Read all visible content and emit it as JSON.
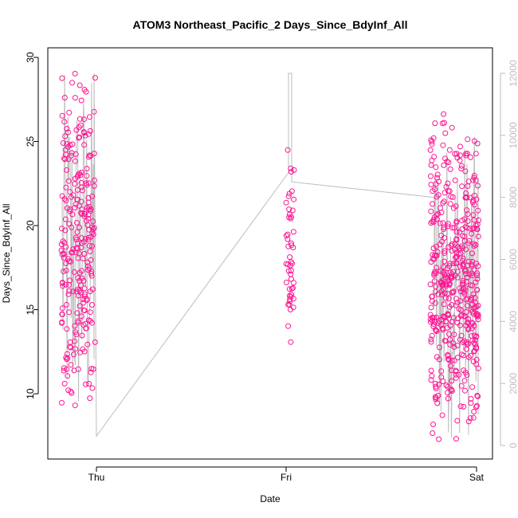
{
  "chart_data": {
    "type": "scatter",
    "title": "ATOM3 Northeast_Pacific_2 Days_Since_BdyInf_All",
    "xlabel": "Date",
    "ylabel": "Days_Since_BdyInf_All",
    "x_ticks": [
      "Thu",
      "Fri",
      "Sat"
    ],
    "y_ticks": [
      10,
      15,
      20,
      25,
      30
    ],
    "y_range": [
      6.5,
      30
    ],
    "y2_ticks": [
      0,
      2000,
      4000,
      6000,
      8000,
      10000,
      12000
    ],
    "y2_range": [
      0,
      12000
    ],
    "colors": {
      "points": "#ff1493",
      "line": "#bdbdbd",
      "axis": "#000000",
      "axis_right": "#bdbdbd"
    },
    "grid": false,
    "scatter_groups": [
      {
        "label": "Thu",
        "count": 260,
        "y_min": 7.8,
        "y_max": 30.0
      },
      {
        "label": "Fri",
        "count": 50,
        "y_min": 11.3,
        "y_max": 25.0
      },
      {
        "label": "Sat",
        "count": 460,
        "y_min": 6.7,
        "y_max": 27.0
      }
    ],
    "line_series": {
      "axis": "right",
      "points": [
        [
          "Thu",
          200
        ],
        [
          "Thu",
          12000
        ],
        [
          "Thu",
          300
        ],
        [
          "Fri",
          9200
        ],
        [
          "Fri",
          12000
        ],
        [
          "Fri",
          8500
        ],
        [
          "Sat",
          8000
        ],
        [
          "Sat",
          2000
        ],
        [
          "Sat",
          10000
        ],
        [
          "Sat",
          1000
        ]
      ]
    }
  }
}
